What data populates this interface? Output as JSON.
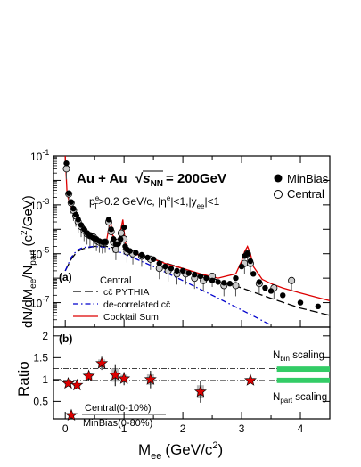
{
  "chart_data": [
    {
      "panel": "(a)",
      "type": "scatter",
      "xlabel": "M",
      "xlabel_sub": "ee",
      "xlabel_unit": "(GeV/c",
      "xlabel_unit_sup": "2",
      "xlabel_unit_end": ")",
      "ylabel": "dN/dM",
      "ylabel_sub1": "ee",
      "ylabel_mid": "/N",
      "ylabel_sub2": "part",
      "ylabel_unit": "(c",
      "ylabel_unit_sup": "2",
      "ylabel_unit_end": "/GeV)",
      "xlim": [
        -0.2,
        4.5
      ],
      "ylim_log10": [
        -8,
        -1
      ],
      "y_scale": "log",
      "y_ticks": [
        {
          "base": "10",
          "exp": "-1",
          "value": 0.1
        },
        {
          "base": "10",
          "exp": "-3",
          "value": 0.001
        },
        {
          "base": "10",
          "exp": "-5",
          "value": 1e-05
        },
        {
          "base": "10",
          "exp": "-7",
          "value": 1e-07
        }
      ],
      "x_ticks": [
        "0",
        "1",
        "2",
        "3",
        "4"
      ],
      "title_main": "Au + Au",
      "title_sqrt": "√",
      "title_s": "s",
      "title_nn": "NN",
      "title_energy": "= 200GeV",
      "cuts_text": {
        "p": "p",
        "p_sup": "e",
        "p_sub": "T",
        "rest1": ">0.2 GeV/c, |η",
        "eta_sup": "e",
        "rest2": "|<1,|y",
        "y_sub": "ee",
        "rest3": "|<1"
      },
      "legend_points": [
        {
          "name": "MinBias",
          "marker": "filled-circle",
          "color": "#000000"
        },
        {
          "name": "Central",
          "marker": "open-circle",
          "color": "#000000"
        }
      ],
      "legend_lines_header": "Central",
      "legend_lines": [
        {
          "name": "cc̄ PYTHIA",
          "style": "long-dash",
          "color": "#000000"
        },
        {
          "name": "de-correlated cc̄",
          "style": "dash-dot",
          "color": "#0000cc"
        },
        {
          "name": "Cocktail Sum",
          "style": "solid",
          "color": "#dd0000"
        }
      ],
      "series": [
        {
          "name": "MinBias",
          "x": [
            0.02,
            0.06,
            0.1,
            0.14,
            0.18,
            0.22,
            0.27,
            0.32,
            0.37,
            0.42,
            0.48,
            0.53,
            0.58,
            0.63,
            0.68,
            0.74,
            0.78,
            0.82,
            0.86,
            0.9,
            0.94,
            1.0,
            1.02,
            1.05,
            1.1,
            1.2,
            1.3,
            1.4,
            1.5,
            1.6,
            1.7,
            1.8,
            1.9,
            2.0,
            2.1,
            2.2,
            2.3,
            2.4,
            2.5,
            2.6,
            2.7,
            2.8,
            2.9,
            3.0,
            3.05,
            3.1,
            3.15,
            3.2,
            3.3,
            3.4,
            3.5,
            3.7,
            4.0,
            4.3
          ],
          "y": [
            0.05,
            0.003,
            0.0013,
            0.0007,
            0.0004,
            0.00025,
            0.00015,
            0.0001,
            7e-05,
            5.5e-05,
            4.5e-05,
            4e-05,
            3.3e-05,
            3e-05,
            3e-05,
            0.00025,
            0.0001,
            4e-05,
            2.5e-05,
            2.5e-05,
            4e-05,
            0.00012,
            2e-05,
            1.5e-05,
            1.3e-05,
            1.1e-05,
            9e-06,
            7e-06,
            6e-06,
            4e-06,
            3e-06,
            2.5e-06,
            2e-06,
            2e-06,
            1.6e-06,
            1.4e-06,
            1.2e-06,
            1e-06,
            8e-07,
            7e-07,
            6.5e-07,
            6e-07,
            1e-06,
            3e-06,
            8e-06,
            1e-05,
            5e-06,
            1.5e-06,
            7e-07,
            4e-07,
            3e-07,
            2e-07,
            1e-07,
            7e-08
          ]
        },
        {
          "name": "Central",
          "x": [
            0.02,
            0.06,
            0.1,
            0.14,
            0.18,
            0.22,
            0.27,
            0.32,
            0.37,
            0.42,
            0.48,
            0.53,
            0.58,
            0.63,
            0.68,
            0.74,
            0.78,
            0.82,
            0.86,
            0.9,
            0.95,
            1.0,
            1.05,
            1.15,
            1.3,
            1.45,
            1.6,
            1.75,
            1.9,
            2.05,
            2.2,
            2.35,
            2.5,
            2.7,
            2.9,
            3.05,
            3.1,
            3.15,
            3.3,
            3.55,
            3.85
          ],
          "y": [
            0.03,
            0.0028,
            0.0012,
            0.0006,
            0.00035,
            0.0002,
            0.00013,
            9e-05,
            6.5e-05,
            5.5e-05,
            4.8e-05,
            3.5e-05,
            3e-05,
            2.8e-05,
            3e-05,
            0.0002,
            8e-05,
            3e-05,
            1.5e-05,
            3e-05,
            7e-05,
            4e-05,
            1.2e-05,
            1e-05,
            8e-06,
            6e-06,
            2.5e-06,
            2e-06,
            1.5e-06,
            1.5e-06,
            1e-06,
            8e-07,
            1.2e-06,
            5e-07,
            5e-07,
            4e-06,
            1e-05,
            4e-06,
            6e-07,
            4e-07,
            8e-07
          ]
        },
        {
          "name": "cc̄ PYTHIA",
          "x": [
            0.0,
            0.1,
            0.2,
            0.3,
            0.5,
            0.7,
            1.0,
            1.5,
            2.0,
            2.5,
            3.0,
            3.5,
            4.0,
            4.5
          ],
          "y": [
            2e-06,
            6e-06,
            1.2e-05,
            1.6e-05,
            2e-05,
            2e-05,
            1.5e-05,
            6e-06,
            2.5e-06,
            1e-06,
            4e-07,
            1.5e-07,
            6e-08,
            3e-08
          ]
        },
        {
          "name": "de-correlated cc̄",
          "x": [
            0.0,
            0.1,
            0.2,
            0.3,
            0.5,
            0.7,
            1.0,
            1.5,
            2.0,
            2.5,
            3.0,
            3.5
          ],
          "y": [
            2e-06,
            7e-06,
            1.4e-05,
            1.8e-05,
            2e-05,
            1.8e-05,
            1e-05,
            3e-06,
            8e-07,
            2e-07,
            5e-08,
            1.2e-08
          ]
        },
        {
          "name": "Cocktail Sum",
          "x": [
            0.0,
            0.03,
            0.06,
            0.1,
            0.14,
            0.2,
            0.3,
            0.4,
            0.5,
            0.6,
            0.7,
            0.75,
            0.77,
            0.8,
            0.9,
            0.98,
            1.02,
            1.05,
            1.1,
            1.3,
            1.5,
            1.7,
            2.0,
            2.3,
            2.6,
            2.9,
            3.0,
            3.05,
            3.1,
            3.15,
            3.2,
            3.35,
            3.5,
            3.7,
            4.0,
            4.3,
            4.5
          ],
          "y": [
            0.1,
            0.003,
            0.0015,
            0.0008,
            0.0005,
            0.0003,
            0.00012,
            7e-05,
            4.5e-05,
            3.5e-05,
            3.2e-05,
            0.00015,
            0.00025,
            6e-05,
            3e-05,
            0.00025,
            3e-05,
            1.5e-05,
            1.2e-05,
            8e-06,
            6e-06,
            4e-06,
            2.5e-06,
            1.5e-06,
            1e-06,
            1.5e-06,
            5e-06,
            1.2e-05,
            2e-05,
            1e-05,
            3e-06,
            9e-07,
            6e-07,
            4e-07,
            2.5e-07,
            1.6e-07,
            1.2e-07
          ]
        }
      ]
    },
    {
      "panel": "(b)",
      "type": "scatter",
      "ylabel": "Ratio",
      "xlim": [
        -0.2,
        4.5
      ],
      "ylim": [
        0.1,
        2.2
      ],
      "y_ticks": [
        "0.5",
        "1",
        "1.5",
        "2"
      ],
      "x_ticks": [
        "0",
        "1",
        "2",
        "3",
        "4"
      ],
      "reference_lines": [
        {
          "name": "N",
          "sub": "bin",
          "rest": " scaling",
          "value": 1.25
        },
        {
          "name": "N",
          "sub": "part",
          "rest": " scaling",
          "value": 0.98
        }
      ],
      "band_color": "#33cc66",
      "legend_marker": "star",
      "legend_numerator": "Central(0-10%)",
      "legend_denominator": "MinBias(0-80%)",
      "series": [
        {
          "name": "Central(0-10%)/MinBias(0-80%)",
          "x": [
            0.05,
            0.2,
            0.4,
            0.62,
            0.85,
            1.0,
            1.45,
            2.3,
            3.15
          ],
          "y": [
            0.91,
            0.87,
            1.08,
            1.37,
            1.1,
            1.02,
            1.0,
            0.72,
            0.98
          ],
          "yerr": [
            0.05,
            0.05,
            0.1,
            0.15,
            0.25,
            0.15,
            0.2,
            0.25,
            0.05
          ]
        }
      ]
    }
  ]
}
